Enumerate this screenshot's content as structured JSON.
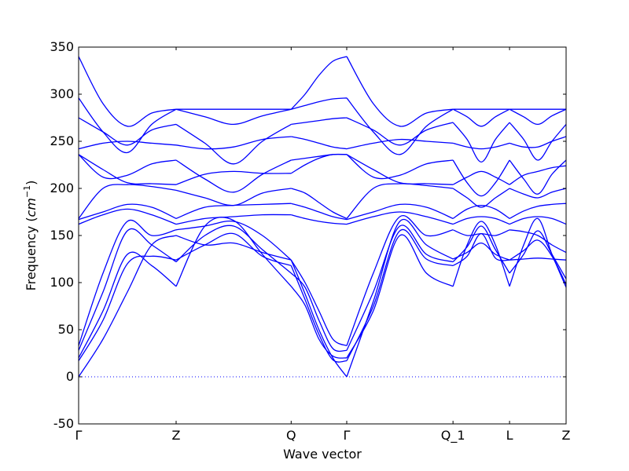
{
  "chart_data": {
    "type": "line",
    "title": "",
    "xlabel": "Wave vector",
    "ylabel": "Frequency",
    "ylabel_unit": "cm",
    "ylabel_unit_exp": "−1",
    "ylim": [
      -50,
      350
    ],
    "yticks": [
      -50,
      0,
      50,
      100,
      150,
      200,
      250,
      300,
      350
    ],
    "xlim": [
      0,
      5.0
    ],
    "xticks": [
      {
        "x": 0.0,
        "label": "Γ"
      },
      {
        "x": 1.0,
        "label": "Z"
      },
      {
        "x": 2.18,
        "label": "Q"
      },
      {
        "x": 2.75,
        "label": "Γ"
      },
      {
        "x": 3.84,
        "label": "Q_1"
      },
      {
        "x": 4.42,
        "label": "L"
      },
      {
        "x": 5.0,
        "label": "Z"
      }
    ],
    "zero_line": {
      "y": 0,
      "style": "dotted"
    },
    "line_color": "#0000ff",
    "grid": false,
    "legend": "none",
    "segments": [
      {
        "from": 0.0,
        "to": 1.0,
        "bands": [
          [
            0,
            40,
            90,
            140,
            150
          ],
          [
            17,
            60,
            120,
            128,
            124
          ],
          [
            20,
            70,
            130,
            118,
            96
          ],
          [
            28,
            90,
            155,
            140,
            122
          ],
          [
            33,
            110,
            165,
            150,
            156
          ],
          [
            162,
            172,
            178,
            172,
            162
          ],
          [
            167,
            175,
            183,
            180,
            168
          ],
          [
            168,
            200,
            204,
            202,
            198
          ],
          [
            236,
            220,
            206,
            205,
            204
          ],
          [
            236,
            212,
            214,
            226,
            230
          ],
          [
            242,
            248,
            250,
            248,
            246
          ],
          [
            275,
            260,
            246,
            262,
            268
          ],
          [
            296,
            260,
            238,
            268,
            284
          ],
          [
            340,
            290,
            266,
            280,
            284
          ]
        ]
      },
      {
        "from": 1.0,
        "to": 2.18,
        "bands": [
          [
            150,
            140,
            142,
            132,
            124
          ],
          [
            124,
            140,
            152,
            128,
            118
          ],
          [
            96,
            160,
            166,
            130,
            96
          ],
          [
            122,
            150,
            160,
            135,
            110
          ],
          [
            156,
            160,
            165,
            150,
            124
          ],
          [
            162,
            168,
            170,
            172,
            172
          ],
          [
            168,
            180,
            182,
            183,
            184
          ],
          [
            198,
            190,
            182,
            195,
            200
          ],
          [
            204,
            215,
            218,
            216,
            216
          ],
          [
            230,
            210,
            196,
            215,
            230
          ],
          [
            246,
            242,
            244,
            252,
            255
          ],
          [
            268,
            248,
            226,
            250,
            268
          ],
          [
            284,
            276,
            268,
            277,
            284
          ],
          [
            284,
            284,
            284,
            284,
            284
          ]
        ]
      },
      {
        "from": 2.18,
        "to": 2.75,
        "bands": [
          [
            124,
            88,
            50,
            20,
            0
          ],
          [
            118,
            82,
            45,
            18,
            17
          ],
          [
            96,
            76,
            40,
            22,
            20
          ],
          [
            110,
            95,
            60,
            30,
            28
          ],
          [
            124,
            100,
            70,
            40,
            33
          ],
          [
            172,
            168,
            165,
            163,
            162
          ],
          [
            184,
            180,
            175,
            170,
            167
          ],
          [
            200,
            195,
            185,
            175,
            168
          ],
          [
            216,
            225,
            232,
            236,
            236
          ],
          [
            230,
            232,
            234,
            236,
            236
          ],
          [
            255,
            252,
            248,
            244,
            242
          ],
          [
            268,
            270,
            272,
            274,
            275
          ],
          [
            284,
            288,
            292,
            295,
            296
          ],
          [
            284,
            300,
            320,
            335,
            340
          ]
        ]
      },
      {
        "from": 2.75,
        "to": 3.84,
        "bands": [
          [
            0,
            80,
            165,
            140,
            125
          ],
          [
            17,
            75,
            155,
            125,
            118
          ],
          [
            20,
            70,
            150,
            110,
            96
          ],
          [
            28,
            90,
            160,
            130,
            122
          ],
          [
            33,
            110,
            170,
            150,
            156
          ],
          [
            162,
            170,
            175,
            170,
            162
          ],
          [
            167,
            175,
            183,
            180,
            168
          ],
          [
            168,
            200,
            205,
            203,
            200
          ],
          [
            236,
            220,
            206,
            205,
            204
          ],
          [
            236,
            212,
            214,
            226,
            230
          ],
          [
            242,
            248,
            252,
            250,
            248
          ],
          [
            275,
            262,
            246,
            262,
            270
          ],
          [
            296,
            260,
            236,
            266,
            284
          ],
          [
            340,
            290,
            266,
            280,
            284
          ]
        ]
      },
      {
        "from": 3.84,
        "to": 4.42,
        "bands": [
          [
            125,
            132,
            142,
            130,
            124
          ],
          [
            118,
            128,
            152,
            126,
            124
          ],
          [
            96,
            140,
            165,
            140,
            96
          ],
          [
            122,
            138,
            160,
            135,
            110
          ],
          [
            156,
            150,
            152,
            150,
            156
          ],
          [
            162,
            168,
            170,
            168,
            162
          ],
          [
            168,
            178,
            182,
            178,
            168
          ],
          [
            200,
            190,
            180,
            190,
            200
          ],
          [
            204,
            212,
            218,
            212,
            204
          ],
          [
            230,
            206,
            192,
            206,
            230
          ],
          [
            248,
            244,
            242,
            244,
            248
          ],
          [
            270,
            252,
            228,
            252,
            270
          ],
          [
            284,
            276,
            266,
            276,
            284
          ],
          [
            284,
            284,
            284,
            284,
            284
          ]
        ]
      },
      {
        "from": 4.42,
        "to": 5.0,
        "bands": [
          [
            124,
            125,
            126,
            125,
            124
          ],
          [
            124,
            134,
            145,
            128,
            98
          ],
          [
            96,
            140,
            168,
            130,
            95
          ],
          [
            110,
            130,
            155,
            130,
            104
          ],
          [
            156,
            154,
            150,
            140,
            132
          ],
          [
            162,
            168,
            170,
            168,
            162
          ],
          [
            168,
            176,
            181,
            183,
            184
          ],
          [
            200,
            194,
            190,
            196,
            200
          ],
          [
            204,
            214,
            218,
            222,
            224
          ],
          [
            230,
            210,
            194,
            215,
            230
          ],
          [
            248,
            244,
            244,
            250,
            255
          ],
          [
            270,
            252,
            230,
            250,
            268
          ],
          [
            284,
            276,
            268,
            277,
            284
          ],
          [
            284,
            284,
            284,
            284,
            284
          ]
        ]
      }
    ]
  }
}
